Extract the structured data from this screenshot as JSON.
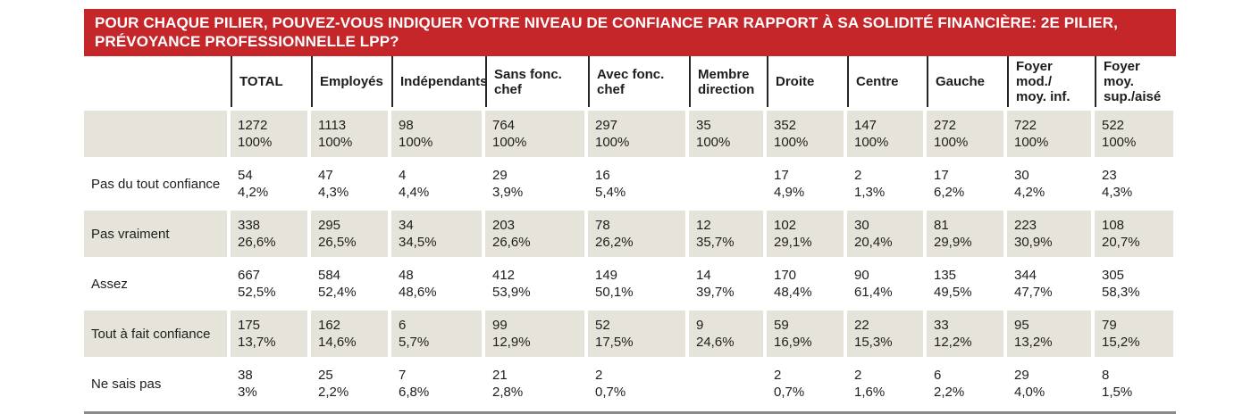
{
  "colors": {
    "banner_red": "#c4262a",
    "row_shade": "#e6e4da",
    "rule_gray": "#8a8a8a",
    "text": "#1d1d1b",
    "header_separator": "#262626",
    "banner_text": "#ffffff"
  },
  "chart_data": {
    "type": "table",
    "title": "POUR CHAQUE PILIER, POUVEZ-VOUS INDIQUER VOTRE NIVEAU DE CONFIANCE PAR RAPPORT À SA SOLIDITÉ FINANCIÈRE: 2E PILIER, PRÉVOYANCE PROFESSIONNELLE LPP?",
    "value_format": "count over percent, French decimal comma",
    "columns": [
      "TOTAL",
      "Employés",
      "Indépendants",
      "Sans fonc. chef",
      "Avec fonc. chef",
      "Membre\ndirection",
      "Droite",
      "Centre",
      "Gauche",
      "Foyer mod./\nmoy. inf.",
      "Foyer moy.\nsup./aisé"
    ],
    "rows": [
      {
        "label": "",
        "shaded": true,
        "cells": [
          [
            "1272",
            "100%"
          ],
          [
            "1113",
            "100%"
          ],
          [
            "98",
            "100%"
          ],
          [
            "764",
            "100%"
          ],
          [
            "297",
            "100%"
          ],
          [
            "35",
            "100%"
          ],
          [
            "352",
            "100%"
          ],
          [
            "147",
            "100%"
          ],
          [
            "272",
            "100%"
          ],
          [
            "722",
            "100%"
          ],
          [
            "522",
            "100%"
          ]
        ]
      },
      {
        "label": "Pas du tout confiance",
        "shaded": false,
        "cells": [
          [
            "54",
            "4,2%"
          ],
          [
            "47",
            "4,3%"
          ],
          [
            "4",
            "4,4%"
          ],
          [
            "29",
            "3,9%"
          ],
          [
            "16",
            "5,4%"
          ],
          [
            "",
            ""
          ],
          [
            "17",
            "4,9%"
          ],
          [
            "2",
            "1,3%"
          ],
          [
            "17",
            "6,2%"
          ],
          [
            "30",
            "4,2%"
          ],
          [
            "23",
            "4,3%"
          ]
        ]
      },
      {
        "label": "Pas vraiment",
        "shaded": true,
        "cells": [
          [
            "338",
            "26,6%"
          ],
          [
            "295",
            "26,5%"
          ],
          [
            "34",
            "34,5%"
          ],
          [
            "203",
            "26,6%"
          ],
          [
            "78",
            "26,2%"
          ],
          [
            "12",
            "35,7%"
          ],
          [
            "102",
            "29,1%"
          ],
          [
            "30",
            "20,4%"
          ],
          [
            "81",
            "29,9%"
          ],
          [
            "223",
            "30,9%"
          ],
          [
            "108",
            "20,7%"
          ]
        ]
      },
      {
        "label": "Assez",
        "shaded": false,
        "cells": [
          [
            "667",
            "52,5%"
          ],
          [
            "584",
            "52,4%"
          ],
          [
            "48",
            "48,6%"
          ],
          [
            "412",
            "53,9%"
          ],
          [
            "149",
            "50,1%"
          ],
          [
            "14",
            "39,7%"
          ],
          [
            "170",
            "48,4%"
          ],
          [
            "90",
            "61,4%"
          ],
          [
            "135",
            "49,5%"
          ],
          [
            "344",
            "47,7%"
          ],
          [
            "305",
            "58,3%"
          ]
        ]
      },
      {
        "label": "Tout à fait confiance",
        "shaded": true,
        "cells": [
          [
            "175",
            "13,7%"
          ],
          [
            "162",
            "14,6%"
          ],
          [
            "6",
            "5,7%"
          ],
          [
            "99",
            "12,9%"
          ],
          [
            "52",
            "17,5%"
          ],
          [
            "9",
            "24,6%"
          ],
          [
            "59",
            "16,9%"
          ],
          [
            "22",
            "15,3%"
          ],
          [
            "33",
            "12,2%"
          ],
          [
            "95",
            "13,2%"
          ],
          [
            "79",
            "15,2%"
          ]
        ]
      },
      {
        "label": "Ne sais pas",
        "shaded": false,
        "cells": [
          [
            "38",
            "3%"
          ],
          [
            "25",
            "2,2%"
          ],
          [
            "7",
            "6,8%"
          ],
          [
            "21",
            "2,8%"
          ],
          [
            "2",
            "0,7%"
          ],
          [
            "",
            ""
          ],
          [
            "2",
            "0,7%"
          ],
          [
            "2",
            "1,6%"
          ],
          [
            "6",
            "2,2%"
          ],
          [
            "29",
            "4,0%"
          ],
          [
            "8",
            "1,5%"
          ]
        ]
      }
    ]
  }
}
